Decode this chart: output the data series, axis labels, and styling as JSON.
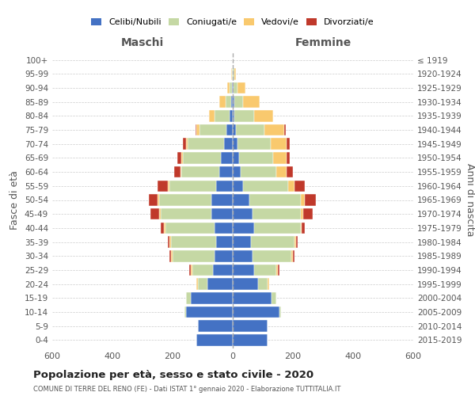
{
  "age_groups": [
    "0-4",
    "5-9",
    "10-14",
    "15-19",
    "20-24",
    "25-29",
    "30-34",
    "35-39",
    "40-44",
    "45-49",
    "50-54",
    "55-59",
    "60-64",
    "65-69",
    "70-74",
    "75-79",
    "80-84",
    "85-89",
    "90-94",
    "95-99",
    "100+"
  ],
  "birth_years": [
    "2015-2019",
    "2010-2014",
    "2005-2009",
    "2000-2004",
    "1995-1999",
    "1990-1994",
    "1985-1989",
    "1980-1984",
    "1975-1979",
    "1970-1974",
    "1965-1969",
    "1960-1964",
    "1955-1959",
    "1950-1954",
    "1945-1949",
    "1940-1944",
    "1935-1939",
    "1930-1934",
    "1925-1929",
    "1920-1924",
    "≤ 1919"
  ],
  "colors": {
    "celibe": "#4472C4",
    "coniugato": "#c5d8a4",
    "vedovo": "#f9c96e",
    "divorziato": "#c0392b"
  },
  "maschi": {
    "celibe": [
      120,
      115,
      155,
      140,
      85,
      65,
      60,
      55,
      60,
      70,
      70,
      55,
      45,
      40,
      30,
      20,
      10,
      5,
      3,
      1,
      0
    ],
    "coniugato": [
      0,
      0,
      5,
      15,
      30,
      70,
      140,
      150,
      165,
      170,
      175,
      155,
      125,
      125,
      120,
      90,
      50,
      20,
      8,
      2,
      0
    ],
    "vedovo": [
      0,
      0,
      0,
      0,
      5,
      5,
      5,
      5,
      5,
      5,
      5,
      5,
      5,
      5,
      5,
      10,
      20,
      20,
      8,
      2,
      0
    ],
    "divorziato": [
      0,
      0,
      0,
      0,
      0,
      5,
      5,
      5,
      10,
      30,
      30,
      35,
      20,
      15,
      10,
      5,
      0,
      0,
      0,
      0,
      0
    ]
  },
  "femmine": {
    "nubile": [
      115,
      115,
      155,
      130,
      85,
      70,
      65,
      60,
      70,
      65,
      55,
      35,
      25,
      20,
      15,
      10,
      5,
      4,
      2,
      1,
      0
    ],
    "coniugata": [
      0,
      0,
      5,
      15,
      30,
      75,
      130,
      145,
      155,
      160,
      170,
      150,
      120,
      115,
      110,
      95,
      65,
      30,
      15,
      4,
      0
    ],
    "vedova": [
      0,
      0,
      0,
      0,
      5,
      5,
      5,
      5,
      5,
      10,
      15,
      20,
      35,
      45,
      55,
      65,
      65,
      55,
      25,
      5,
      0
    ],
    "divorziata": [
      0,
      0,
      0,
      0,
      0,
      5,
      5,
      5,
      10,
      30,
      35,
      35,
      20,
      10,
      10,
      5,
      0,
      0,
      0,
      0,
      0
    ]
  },
  "xlim": 600,
  "title": "Popolazione per età, sesso e stato civile - 2020",
  "subtitle": "COMUNE DI TERRE DEL RENO (FE) - Dati ISTAT 1° gennaio 2020 - Elaborazione TUTTITALIA.IT",
  "ylabel": "Fasce di età",
  "ylabel_right": "Anni di nascita",
  "maschi_label": "Maschi",
  "femmine_label": "Femmine",
  "legend_labels": [
    "Celibi/Nubili",
    "Coniugati/e",
    "Vedovi/e",
    "Divorziati/e"
  ],
  "bg_color": "#ffffff",
  "grid_color": "#cccccc",
  "text_color": "#555555",
  "center_line_color": "#aaaaaa"
}
